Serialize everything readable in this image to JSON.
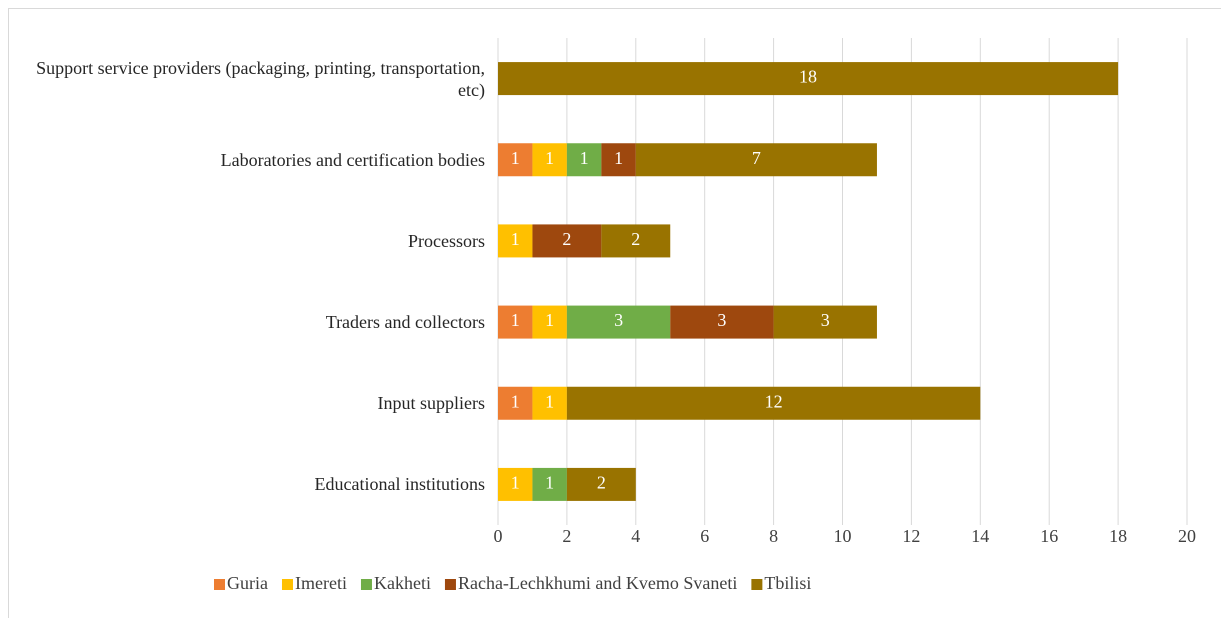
{
  "chart_data": {
    "type": "stacked_barh",
    "categories": [
      "Support service providers (packaging, printing, transportation, etc)",
      "Laboratories and certification bodies",
      "Processors",
      "Traders and collectors",
      "Input suppliers",
      "Educational institutions"
    ],
    "series": [
      {
        "name": "Guria",
        "color": "#ed7d31",
        "values": [
          null,
          1,
          null,
          1,
          1,
          null
        ]
      },
      {
        "name": "Imereti",
        "color": "#ffc000",
        "values": [
          null,
          1,
          1,
          1,
          1,
          1
        ]
      },
      {
        "name": "Kakheti",
        "color": "#70ad47",
        "values": [
          null,
          1,
          null,
          3,
          null,
          1
        ]
      },
      {
        "name": "Racha-Lechkhumi and Kvemo Svaneti",
        "color": "#9e480e",
        "values": [
          null,
          1,
          2,
          3,
          null,
          null
        ]
      },
      {
        "name": "Tbilisi",
        "color": "#997300",
        "values": [
          18,
          7,
          2,
          3,
          12,
          2
        ]
      }
    ],
    "xlim": [
      0,
      20
    ],
    "xticks": [
      0,
      2,
      4,
      6,
      8,
      10,
      12,
      14,
      16,
      18,
      20
    ],
    "grid": true,
    "legend": "bottom"
  }
}
